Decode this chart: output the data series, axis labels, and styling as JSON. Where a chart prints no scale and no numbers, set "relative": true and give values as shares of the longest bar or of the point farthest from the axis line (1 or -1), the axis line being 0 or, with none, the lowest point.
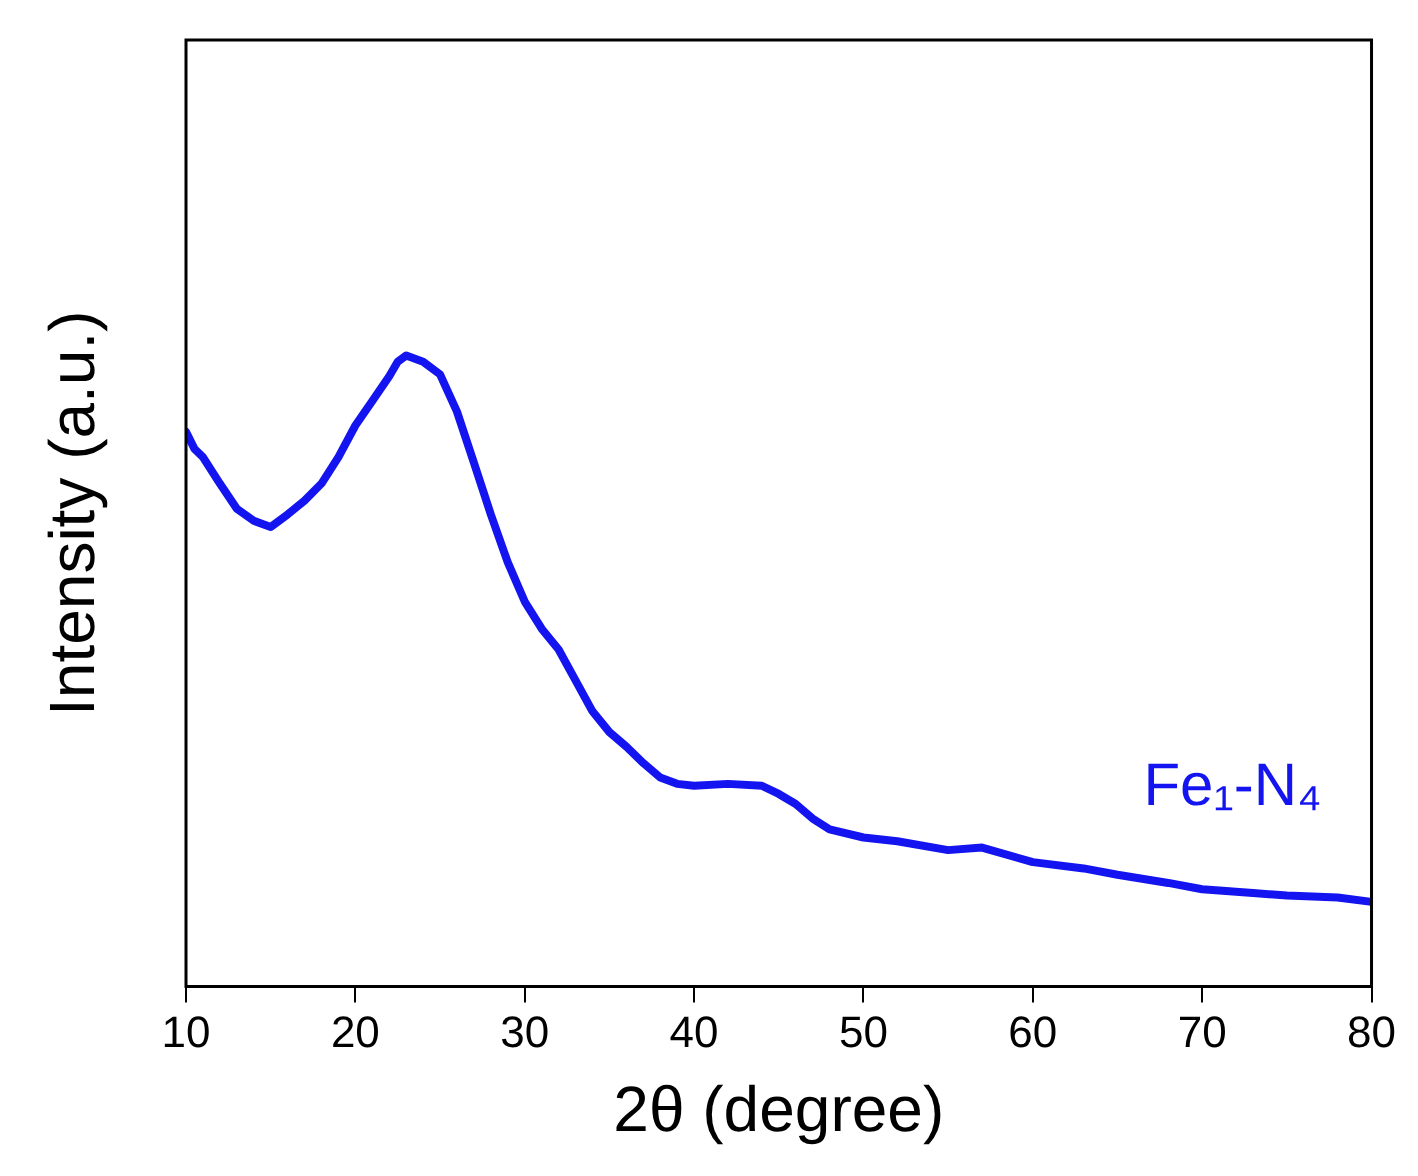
{
  "chart_data": {
    "type": "line",
    "relative": true,
    "xlabel": "2θ (degree)",
    "ylabel": "Intensity (a.u.)",
    "xlim": [
      10,
      80
    ],
    "xticks": [
      10,
      20,
      30,
      40,
      50,
      60,
      70,
      80
    ],
    "legend": false,
    "grid": false,
    "marker": "none",
    "line_style": "solid",
    "series": [
      {
        "name": "Fe₁-N₄",
        "color": "#1414f0",
        "x": [
          10,
          10.5,
          11,
          12,
          13,
          14,
          15,
          16,
          17,
          18,
          19,
          20,
          21,
          22,
          22.5,
          23,
          24,
          25,
          26,
          27,
          28,
          29,
          30,
          31,
          32,
          33,
          34,
          35,
          36,
          37,
          38,
          39,
          40,
          42,
          44,
          45,
          46,
          47,
          48,
          50,
          52,
          55,
          57,
          60,
          63,
          65,
          68,
          70,
          73,
          75,
          78,
          80
        ],
        "values": [
          0.879,
          0.852,
          0.839,
          0.797,
          0.757,
          0.738,
          0.728,
          0.748,
          0.77,
          0.797,
          0.839,
          0.889,
          0.928,
          0.967,
          0.99,
          1,
          0.99,
          0.97,
          0.911,
          0.83,
          0.748,
          0.672,
          0.61,
          0.567,
          0.534,
          0.485,
          0.436,
          0.403,
          0.38,
          0.354,
          0.331,
          0.321,
          0.318,
          0.321,
          0.318,
          0.305,
          0.289,
          0.266,
          0.249,
          0.236,
          0.23,
          0.216,
          0.22,
          0.197,
          0.187,
          0.177,
          0.164,
          0.154,
          0.148,
          0.144,
          0.141,
          0.134
        ]
      }
    ]
  }
}
